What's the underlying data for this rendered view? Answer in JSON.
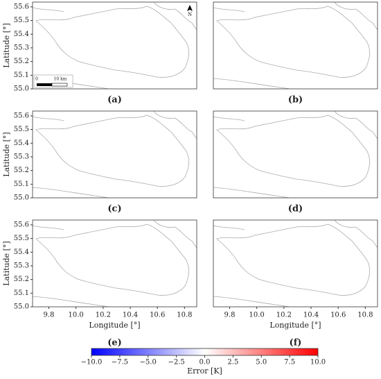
{
  "chart_data": [
    {
      "type": "map",
      "panel_label": "(a)",
      "ylabel": "Latitude [°]",
      "xlim": [
        9.68,
        10.89
      ],
      "ylim": [
        55.0,
        55.635
      ],
      "yticks": [
        {
          "value": 55,
          "label": "55.0"
        },
        55.1,
        55.2,
        55.3,
        55.4,
        55.5,
        55.6
      ],
      "scalebar": [
        "0",
        "10 km"
      ],
      "north": "N"
    },
    {
      "type": "map",
      "panel_label": "(b)",
      "xlim": [
        9.68,
        10.89
      ],
      "ylim": [
        55.0,
        55.635
      ]
    },
    {
      "type": "map",
      "panel_label": "(c)",
      "ylabel": "Latitude [°]",
      "xlim": [
        9.68,
        10.89
      ],
      "ylim": [
        55.0,
        55.635
      ],
      "yticks": [
        {
          "value": 55,
          "label": "55.0"
        },
        55.1,
        55.2,
        55.3,
        55.4,
        55.5,
        55.6
      ]
    },
    {
      "type": "map",
      "panel_label": "(d)",
      "xlim": [
        9.68,
        10.89
      ],
      "ylim": [
        55.0,
        55.635
      ]
    },
    {
      "type": "map",
      "panel_label": "(e)",
      "ylabel": "Latitude [°]",
      "xlabel": "Longitude [°]",
      "xlim": [
        9.68,
        10.89
      ],
      "ylim": [
        55.0,
        55.635
      ],
      "yticks": [
        {
          "value": 55,
          "label": "55.0"
        },
        55.1,
        55.2,
        55.3,
        55.4,
        55.5,
        55.6
      ],
      "xticks": [
        9.8,
        {
          "value": 10,
          "label": "10.0"
        },
        10.2,
        10.4,
        10.6,
        10.8
      ]
    },
    {
      "type": "map",
      "panel_label": "(f)",
      "xlabel": "Longitude [°]",
      "xlim": [
        9.68,
        10.89
      ],
      "ylim": [
        55.0,
        55.635
      ],
      "xticks": [
        9.8,
        {
          "value": 10,
          "label": "10.0"
        },
        10.2,
        10.4,
        10.6,
        10.8
      ]
    }
  ],
  "colorbar": {
    "label": "Error [K]",
    "clim": [
      -10,
      10
    ],
    "colors": [
      "#0000ff",
      "#ffffff",
      "#ff0000"
    ],
    "ticks": [
      {
        "value": -10,
        "label": "−10.0"
      },
      {
        "value": -7.5,
        "label": "−7.5"
      },
      {
        "value": -5,
        "label": "−5.0"
      },
      {
        "value": -2.5,
        "label": "−2.5"
      },
      {
        "value": 0,
        "label": "0.0"
      },
      2.5,
      {
        "value": 5,
        "label": "5.0"
      },
      7.5,
      {
        "value": 10,
        "label": "10.0"
      }
    ]
  }
}
